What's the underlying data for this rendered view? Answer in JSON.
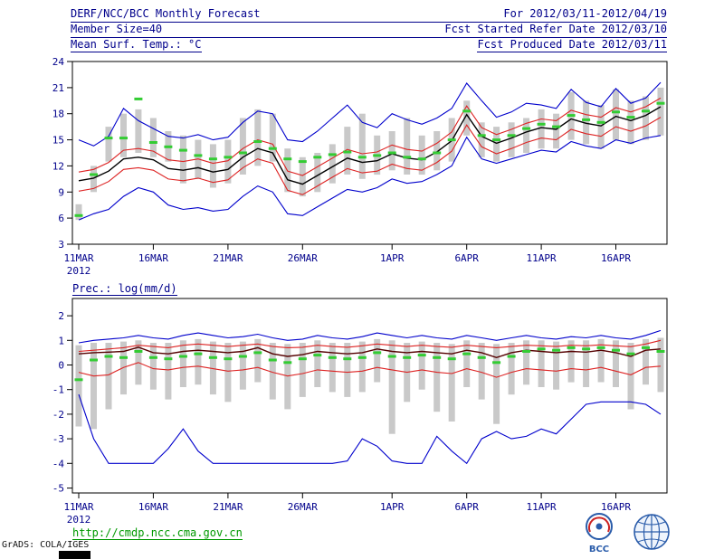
{
  "header": {
    "title": "DERF/NCC/BCC Monthly Forecast",
    "date_range": "For 2012/03/11-2012/04/19",
    "member_size": "Member Size=40",
    "refer_date": "Fcst Started Refer Date 2012/03/10",
    "produced_date": "Fcst Produced Date 2012/03/11"
  },
  "charts": {
    "temp_title": "Mean Surf. Temp.: °C",
    "precip_title": "Prec.: log(mm/d)"
  },
  "footer": {
    "url": "http://cmdp.ncc.cma.gov.cn",
    "credit": "GrADS: COLA/IGES",
    "bcc_label": "BCC"
  },
  "colors": {
    "text_navy": "#00008b",
    "line_blue": "#0000cc",
    "line_red": "#dd2222",
    "line_black": "#000000",
    "line_maroon": "#550000",
    "marker_green": "#33cc33",
    "bar_gray": "#c9c9c9",
    "url_green": "#009900",
    "logo_blue": "#2a5caa"
  },
  "chart_data": [
    {
      "type": "line",
      "title": "Mean Surf. Temp.: °C",
      "ylabel": "°C",
      "ylim": [
        3,
        24
      ],
      "yticks": [
        3,
        6,
        9,
        12,
        15,
        18,
        21,
        24
      ],
      "grid": false,
      "n_days": 40,
      "x_start": "11MAR2012",
      "x_end": "19APR2012",
      "x_tick_labels": [
        "11MAR",
        "16MAR",
        "21MAR",
        "26MAR",
        "1APR",
        "6APR",
        "11APR",
        "16APR"
      ],
      "x_tick_positions": [
        0,
        5,
        10,
        15,
        21,
        26,
        31,
        36
      ],
      "year_label": "2012",
      "series": [
        {
          "name": "ensemble maximum",
          "color": "#0000cc",
          "width": 1.1,
          "values": [
            15.0,
            14.3,
            15.4,
            18.6,
            17.2,
            16.3,
            15.4,
            15.2,
            15.6,
            15.0,
            15.3,
            17.0,
            18.3,
            18.0,
            15.0,
            14.8,
            16.0,
            17.5,
            19.0,
            17.0,
            16.4,
            18.0,
            17.3,
            16.8,
            17.5,
            18.6,
            21.5,
            19.5,
            17.6,
            18.2,
            19.2,
            19.0,
            18.6,
            20.8,
            19.3,
            18.8,
            20.9,
            19.2,
            19.8,
            21.6
          ]
        },
        {
          "name": "mean plus std",
          "color": "#dd2222",
          "width": 1.1,
          "values": [
            11.3,
            11.6,
            12.4,
            13.8,
            14.0,
            13.7,
            12.7,
            12.5,
            12.8,
            12.3,
            12.6,
            14.0,
            15.0,
            14.5,
            11.4,
            10.9,
            11.9,
            12.9,
            13.9,
            13.4,
            13.6,
            14.4,
            13.9,
            13.7,
            14.6,
            15.9,
            18.9,
            16.4,
            15.6,
            16.2,
            16.9,
            17.4,
            17.2,
            18.4,
            17.9,
            17.6,
            18.7,
            18.2,
            18.8,
            19.8
          ]
        },
        {
          "name": "ensemble mean",
          "color": "#000000",
          "width": 1.4,
          "values": [
            10.3,
            10.6,
            11.4,
            12.8,
            13.0,
            12.7,
            11.7,
            11.5,
            11.8,
            11.3,
            11.6,
            13.0,
            14.0,
            13.5,
            10.4,
            9.9,
            10.9,
            11.9,
            12.9,
            12.4,
            12.6,
            13.4,
            12.9,
            12.7,
            13.6,
            14.9,
            17.9,
            15.4,
            14.6,
            15.2,
            15.9,
            16.4,
            16.2,
            17.4,
            16.9,
            16.6,
            17.7,
            17.2,
            17.8,
            18.8
          ]
        },
        {
          "name": "mean minus std",
          "color": "#dd2222",
          "width": 1.1,
          "values": [
            9.1,
            9.4,
            10.2,
            11.6,
            11.8,
            11.5,
            10.5,
            10.3,
            10.6,
            10.1,
            10.4,
            11.8,
            12.8,
            12.3,
            9.2,
            8.7,
            9.7,
            10.7,
            11.7,
            11.2,
            11.4,
            12.2,
            11.7,
            11.5,
            12.4,
            13.7,
            16.7,
            14.2,
            13.4,
            14.0,
            14.7,
            15.2,
            15.0,
            16.2,
            15.7,
            15.4,
            16.5,
            16.0,
            16.6,
            17.6
          ]
        },
        {
          "name": "ensemble minimum",
          "color": "#0000cc",
          "width": 1.1,
          "values": [
            5.8,
            6.5,
            7.0,
            8.5,
            9.5,
            9.0,
            7.5,
            7.0,
            7.2,
            6.8,
            7.0,
            8.5,
            9.7,
            9.0,
            6.5,
            6.3,
            7.3,
            8.3,
            9.3,
            9.0,
            9.5,
            10.5,
            10.0,
            10.2,
            11.0,
            12.0,
            15.3,
            12.8,
            12.3,
            12.8,
            13.3,
            13.8,
            13.6,
            14.8,
            14.3,
            14.0,
            15.0,
            14.6,
            15.2,
            15.5
          ]
        }
      ],
      "bars": {
        "name": "member spread",
        "color": "#c9c9c9",
        "ranges": [
          [
            5.8,
            7.6
          ],
          [
            9.0,
            12.0
          ],
          [
            12.5,
            16.5
          ],
          [
            13.0,
            18.0
          ],
          [
            13.5,
            18.5
          ],
          [
            13.0,
            17.5
          ],
          [
            12.5,
            16.0
          ],
          [
            10.0,
            15.5
          ],
          [
            10.5,
            15.0
          ],
          [
            9.5,
            14.5
          ],
          [
            10.0,
            15.0
          ],
          [
            11.0,
            17.5
          ],
          [
            12.0,
            18.5
          ],
          [
            12.5,
            18.0
          ],
          [
            9.0,
            14.0
          ],
          [
            8.5,
            13.0
          ],
          [
            9.0,
            13.5
          ],
          [
            10.0,
            14.5
          ],
          [
            11.0,
            16.5
          ],
          [
            10.5,
            18.0
          ],
          [
            11.0,
            15.5
          ],
          [
            11.5,
            16.0
          ],
          [
            11.0,
            17.5
          ],
          [
            11.0,
            15.5
          ],
          [
            11.5,
            16.0
          ],
          [
            12.5,
            17.5
          ],
          [
            15.5,
            19.5
          ],
          [
            13.0,
            17.0
          ],
          [
            12.5,
            16.5
          ],
          [
            13.0,
            17.0
          ],
          [
            13.5,
            17.5
          ],
          [
            14.0,
            18.5
          ],
          [
            14.0,
            18.0
          ],
          [
            15.0,
            20.5
          ],
          [
            14.5,
            19.5
          ],
          [
            14.0,
            19.0
          ],
          [
            15.0,
            20.8
          ],
          [
            14.5,
            19.5
          ],
          [
            15.0,
            20.0
          ],
          [
            15.5,
            21.0
          ]
        ]
      },
      "markers": {
        "name": "daily median",
        "color": "#33cc33",
        "values": [
          6.3,
          11.0,
          15.2,
          15.2,
          19.7,
          14.7,
          14.2,
          13.8,
          13.2,
          12.8,
          13.0,
          13.5,
          14.8,
          14.0,
          12.8,
          12.5,
          13.0,
          13.3,
          13.6,
          13.0,
          13.2,
          13.5,
          13.0,
          12.8,
          13.5,
          15.0,
          18.3,
          15.5,
          15.0,
          15.5,
          16.3,
          16.8,
          16.5,
          17.8,
          17.3,
          17.0,
          18.2,
          17.6,
          18.3,
          19.2
        ]
      }
    },
    {
      "type": "line",
      "title": "Prec.: log(mm/d)",
      "ylabel": "log(mm/d)",
      "ylim": [
        -5,
        2
      ],
      "yticks": [
        -5,
        -4,
        -3,
        -2,
        -1,
        0,
        1,
        2
      ],
      "grid": false,
      "n_days": 40,
      "x_start": "11MAR2012",
      "x_end": "19APR2012",
      "x_tick_labels": [
        "11MAR",
        "16MAR",
        "21MAR",
        "26MAR",
        "1APR",
        "6APR",
        "11APR",
        "16APR"
      ],
      "x_tick_positions": [
        0,
        5,
        10,
        15,
        21,
        26,
        31,
        36
      ],
      "year_label": "2012",
      "series": [
        {
          "name": "ensemble maximum",
          "color": "#0000cc",
          "width": 1.1,
          "values": [
            0.9,
            1.0,
            1.05,
            1.1,
            1.2,
            1.1,
            1.05,
            1.2,
            1.3,
            1.2,
            1.1,
            1.15,
            1.25,
            1.1,
            1.0,
            1.05,
            1.2,
            1.1,
            1.05,
            1.15,
            1.3,
            1.2,
            1.1,
            1.2,
            1.1,
            1.05,
            1.2,
            1.1,
            1.0,
            1.1,
            1.2,
            1.1,
            1.05,
            1.15,
            1.1,
            1.2,
            1.1,
            1.05,
            1.2,
            1.4
          ]
        },
        {
          "name": "mean plus std",
          "color": "#dd2222",
          "width": 1.1,
          "values": [
            0.55,
            0.6,
            0.65,
            0.7,
            0.8,
            0.75,
            0.7,
            0.8,
            0.85,
            0.8,
            0.75,
            0.8,
            0.85,
            0.75,
            0.7,
            0.72,
            0.8,
            0.75,
            0.72,
            0.78,
            0.85,
            0.8,
            0.75,
            0.8,
            0.75,
            0.72,
            0.8,
            0.75,
            0.7,
            0.75,
            0.8,
            0.78,
            0.75,
            0.8,
            0.78,
            0.82,
            0.78,
            0.74,
            0.85,
            1.0
          ]
        },
        {
          "name": "ensemble mean",
          "color": "#550000",
          "width": 1.4,
          "values": [
            0.45,
            0.5,
            0.52,
            0.55,
            0.72,
            0.5,
            0.45,
            0.55,
            0.6,
            0.55,
            0.5,
            0.55,
            0.7,
            0.45,
            0.35,
            0.42,
            0.55,
            0.5,
            0.45,
            0.5,
            0.65,
            0.55,
            0.5,
            0.55,
            0.5,
            0.45,
            0.6,
            0.5,
            0.3,
            0.5,
            0.6,
            0.55,
            0.5,
            0.55,
            0.52,
            0.6,
            0.5,
            0.35,
            0.6,
            0.65
          ]
        },
        {
          "name": "mean minus std",
          "color": "#dd2222",
          "width": 1.1,
          "values": [
            -0.3,
            -0.45,
            -0.4,
            -0.1,
            0.1,
            -0.15,
            -0.2,
            -0.1,
            -0.05,
            -0.15,
            -0.25,
            -0.2,
            -0.1,
            -0.3,
            -0.45,
            -0.35,
            -0.2,
            -0.25,
            -0.3,
            -0.25,
            -0.1,
            -0.2,
            -0.3,
            -0.2,
            -0.3,
            -0.35,
            -0.15,
            -0.3,
            -0.5,
            -0.3,
            -0.15,
            -0.2,
            -0.25,
            -0.15,
            -0.2,
            -0.1,
            -0.25,
            -0.4,
            -0.1,
            -0.05
          ]
        },
        {
          "name": "ensemble minimum",
          "color": "#0000cc",
          "width": 1.1,
          "values": [
            -1.2,
            -3.0,
            -4.0,
            -4.0,
            -4.0,
            -4.0,
            -3.4,
            -2.6,
            -3.5,
            -4.0,
            -4.0,
            -4.0,
            -4.0,
            -4.0,
            -4.0,
            -4.0,
            -4.0,
            -4.0,
            -3.9,
            -3.0,
            -3.3,
            -3.9,
            -4.0,
            -4.0,
            -2.9,
            -3.5,
            -4.0,
            -3.0,
            -2.7,
            -3.0,
            -2.9,
            -2.6,
            -2.8,
            -2.2,
            -1.6,
            -1.5,
            -1.5,
            -1.5,
            -1.6,
            -2.0
          ]
        }
      ],
      "bars": {
        "name": "member spread",
        "color": "#c9c9c9",
        "ranges": [
          [
            -2.5,
            0.8
          ],
          [
            -2.6,
            0.9
          ],
          [
            -1.8,
            0.9
          ],
          [
            -1.2,
            0.95
          ],
          [
            -0.8,
            1.0
          ],
          [
            -1.0,
            0.9
          ],
          [
            -1.4,
            0.9
          ],
          [
            -0.9,
            1.0
          ],
          [
            -0.8,
            1.05
          ],
          [
            -1.2,
            0.95
          ],
          [
            -1.5,
            0.9
          ],
          [
            -1.0,
            0.95
          ],
          [
            -0.7,
            1.05
          ],
          [
            -1.4,
            0.9
          ],
          [
            -1.8,
            0.85
          ],
          [
            -1.3,
            0.9
          ],
          [
            -0.9,
            1.0
          ],
          [
            -1.1,
            0.9
          ],
          [
            -1.3,
            0.9
          ],
          [
            -1.1,
            0.95
          ],
          [
            -0.7,
            1.05
          ],
          [
            -2.8,
            1.0
          ],
          [
            -1.5,
            0.9
          ],
          [
            -1.0,
            0.95
          ],
          [
            -1.9,
            0.9
          ],
          [
            -2.3,
            0.85
          ],
          [
            -0.9,
            1.0
          ],
          [
            -1.4,
            0.9
          ],
          [
            -2.4,
            0.85
          ],
          [
            -1.2,
            0.9
          ],
          [
            -0.8,
            1.0
          ],
          [
            -0.9,
            1.0
          ],
          [
            -1.0,
            0.95
          ],
          [
            -0.7,
            1.0
          ],
          [
            -0.9,
            1.0
          ],
          [
            -0.7,
            1.05
          ],
          [
            -0.9,
            1.0
          ],
          [
            -1.8,
            0.9
          ],
          [
            -0.8,
            1.05
          ],
          [
            -1.1,
            1.1
          ]
        ]
      },
      "markers": {
        "name": "daily median",
        "color": "#33cc33",
        "values": [
          -0.6,
          0.2,
          0.35,
          0.3,
          0.55,
          0.3,
          0.25,
          0.35,
          0.45,
          0.3,
          0.25,
          0.35,
          0.5,
          0.2,
          0.1,
          0.25,
          0.4,
          0.3,
          0.25,
          0.3,
          0.5,
          0.35,
          0.3,
          0.4,
          0.3,
          0.25,
          0.45,
          0.3,
          0.1,
          0.35,
          0.55,
          0.65,
          0.6,
          0.7,
          0.65,
          0.7,
          0.6,
          0.45,
          0.7,
          0.55
        ]
      }
    }
  ]
}
